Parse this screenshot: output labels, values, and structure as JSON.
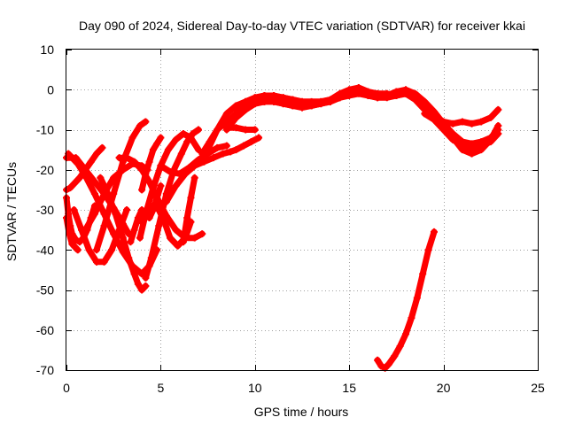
{
  "chart_data": {
    "type": "scatter",
    "title": "Day 090 of 2024, Sidereal Day-to-day VTEC variation (SDTVAR) for receiver kkai",
    "xlabel": "GPS time / hours",
    "ylabel": "SDTVAR / TECUs",
    "xlim": [
      0,
      25
    ],
    "ylim": [
      -70,
      10
    ],
    "xticks": [
      0,
      5,
      10,
      15,
      20,
      25
    ],
    "yticks": [
      10,
      0,
      -10,
      -20,
      -30,
      -40,
      -50,
      -60,
      -70
    ],
    "xtick_labels": [
      "0",
      "5",
      "10",
      "15",
      "20",
      "25"
    ],
    "ytick_labels": [
      "10",
      "0",
      "-10",
      "-20",
      "-30",
      "-40",
      "-50",
      "-60",
      "-70"
    ],
    "grid": true,
    "marker": "+",
    "color": "#ff0000",
    "series": [
      {
        "name": "arc-01",
        "x": [
          0.0,
          0.2,
          0.4,
          0.7,
          1.0,
          1.3,
          1.6,
          1.9
        ],
        "y": [
          -25,
          -24.5,
          -23.5,
          -22,
          -20,
          -18,
          -16,
          -14.5
        ]
      },
      {
        "name": "arc-02",
        "x": [
          0.0,
          0.1,
          0.2,
          0.3,
          0.5,
          0.7,
          0.9,
          1.1,
          1.3,
          1.5
        ],
        "y": [
          -27,
          -31,
          -34,
          -36,
          -37.5,
          -38,
          -37,
          -35,
          -32,
          -29
        ]
      },
      {
        "name": "arc-03",
        "x": [
          0.1,
          0.3,
          0.6,
          1.0,
          1.5,
          2.0,
          2.5,
          3.0,
          3.5,
          4.0,
          4.4,
          4.8
        ],
        "y": [
          -16,
          -17,
          -18.5,
          -21.5,
          -26,
          -31,
          -36,
          -40.5,
          -44,
          -46,
          -44,
          -40
        ]
      },
      {
        "name": "arc-04",
        "x": [
          0.0,
          0.15,
          0.3,
          0.6
        ],
        "y": [
          -32,
          -36,
          -38.5,
          -40
        ]
      },
      {
        "name": "arc-05",
        "x": [
          0.0,
          0.5,
          1.0,
          1.5,
          2.0,
          2.5,
          3.0,
          3.3
        ],
        "y": [
          -17,
          -17,
          -20,
          -23,
          -26,
          -29.5,
          -33.5,
          -36
        ]
      },
      {
        "name": "arc-06",
        "x": [
          0.4,
          0.8,
          1.2,
          1.6,
          2.0,
          2.4,
          2.8,
          3.2
        ],
        "y": [
          -30,
          -35,
          -40,
          -43,
          -43,
          -40,
          -35,
          -30
        ]
      },
      {
        "name": "arc-07",
        "x": [
          1.0,
          1.5,
          2.0,
          2.5,
          3.0,
          3.5,
          4.0,
          4.3
        ],
        "y": [
          -35,
          -31,
          -26,
          -22,
          -20,
          -18.5,
          -19,
          -20
        ]
      },
      {
        "name": "arc-08",
        "x": [
          1.6,
          2.0,
          2.5,
          3.0,
          3.5,
          3.9,
          4.2
        ],
        "y": [
          -40,
          -34,
          -26,
          -18,
          -12,
          -9,
          -8
        ]
      },
      {
        "name": "arc-09",
        "x": [
          1.8,
          2.2,
          2.6,
          3.0,
          3.3,
          3.6,
          3.8,
          4.0,
          4.2
        ],
        "y": [
          -22,
          -26,
          -31,
          -37,
          -42,
          -46,
          -48.5,
          -50,
          -49
        ]
      },
      {
        "name": "arc-10",
        "x": [
          2.8,
          3.2,
          3.6,
          4.0,
          4.4,
          4.8,
          5.3,
          5.8,
          6.3,
          6.8,
          7.2
        ],
        "y": [
          -17,
          -17,
          -18,
          -20,
          -23,
          -27,
          -31.5,
          -35,
          -37,
          -37,
          -36
        ]
      },
      {
        "name": "arc-11",
        "x": [
          3.4,
          3.6,
          3.8,
          4.0
        ],
        "y": [
          -38,
          -35,
          -32,
          -30
        ]
      },
      {
        "name": "arc-12",
        "x": [
          3.9,
          4.2,
          4.6,
          5.0,
          5.4,
          5.8,
          6.2,
          6.6,
          7.0
        ],
        "y": [
          -37,
          -31,
          -24.5,
          -19,
          -15,
          -12.5,
          -11,
          -12,
          -15
        ]
      },
      {
        "name": "arc-13",
        "x": [
          4.0,
          4.2,
          4.4,
          4.6,
          4.8,
          5.0
        ],
        "y": [
          -25,
          -21,
          -18,
          -15,
          -13.5,
          -12
        ]
      },
      {
        "name": "arc-14",
        "x": [
          4.2,
          4.5,
          4.9,
          5.3,
          5.7,
          6.1,
          6.4,
          6.7,
          7.0
        ],
        "y": [
          -47,
          -42,
          -34,
          -26,
          -20,
          -16,
          -13,
          -11,
          -10
        ]
      },
      {
        "name": "arc-15",
        "x": [
          4.4,
          4.6,
          4.8,
          5.0
        ],
        "y": [
          -32,
          -30,
          -27,
          -24
        ]
      },
      {
        "name": "arc-16",
        "x": [
          4.0,
          4.3,
          4.6,
          4.9,
          5.2,
          5.5,
          5.9,
          6.3,
          6.6
        ],
        "y": [
          -33,
          -30,
          -29,
          -30,
          -33,
          -37,
          -39,
          -37,
          -33
        ]
      },
      {
        "name": "arc-17",
        "x": [
          5.0,
          5.5,
          6.0,
          6.5,
          7.0,
          7.5,
          8.0,
          8.5
        ],
        "y": [
          -19,
          -20.5,
          -21,
          -19.5,
          -17.5,
          -16,
          -14.5,
          -14
        ]
      },
      {
        "name": "arc-18",
        "x": [
          5.3,
          5.8,
          6.3,
          6.8,
          7.3,
          7.8,
          8.3,
          8.7,
          9.0,
          9.4,
          9.8,
          10.2
        ],
        "y": [
          -28,
          -24,
          -21,
          -19,
          -18,
          -17,
          -16,
          -15.5,
          -15,
          -14,
          -13,
          -12
        ]
      },
      {
        "name": "arc-19",
        "x": [
          6.2,
          6.4,
          6.6,
          6.8
        ],
        "y": [
          -38,
          -32,
          -27,
          -22
        ]
      },
      {
        "name": "arc-20",
        "x": [
          6.5,
          7.0,
          7.5,
          8.0,
          8.5,
          9.0,
          9.5,
          10.0,
          10.5,
          11.0,
          11.5,
          12.0,
          12.5,
          13.0,
          13.5,
          14.0,
          14.5,
          15.0,
          15.5,
          16.0,
          16.5,
          17.0,
          17.5,
          18.0,
          18.5,
          19.0,
          19.5,
          20.0,
          20.5,
          21.0,
          21.5,
          22.0,
          22.5,
          22.9
        ],
        "y": [
          -20,
          -18,
          -15,
          -10,
          -6,
          -4,
          -3,
          -2,
          -1.5,
          -1.5,
          -2,
          -2.5,
          -3,
          -3,
          -3,
          -2.5,
          -1,
          0,
          0.5,
          -0.5,
          -1,
          -1,
          -1.5,
          -1,
          -2,
          -4,
          -6.5,
          -8,
          -8.5,
          -8,
          -8.5,
          -8,
          -7,
          -5
        ]
      },
      {
        "name": "arc-21",
        "x": [
          7.2,
          7.6,
          8.0,
          8.5,
          9.0,
          9.5,
          10.0,
          10.5,
          11.0,
          11.5,
          12.0,
          12.5,
          13.0,
          13.5,
          14.0,
          14.5,
          15.0,
          15.5,
          16.0,
          16.5,
          17.0,
          17.5,
          18.0,
          18.5,
          19.0,
          19.5,
          20.0,
          20.5,
          21.0,
          21.5,
          22.0,
          22.5,
          22.9
        ],
        "y": [
          -16,
          -13,
          -10,
          -8,
          -6,
          -4.5,
          -3.5,
          -3,
          -3,
          -3.5,
          -4,
          -4.5,
          -4,
          -3.5,
          -3,
          -2,
          -1,
          -0.5,
          -1.5,
          -2,
          -1.5,
          -0.5,
          0,
          -1,
          -3,
          -5.5,
          -8.5,
          -11,
          -13,
          -13.5,
          -13,
          -12,
          -10
        ]
      },
      {
        "name": "arc-22",
        "x": [
          8.5,
          9.0,
          9.5,
          10.0,
          10.5,
          11.0,
          11.5,
          12.0,
          12.5,
          13.0,
          13.5,
          14.0,
          14.5,
          15.0,
          15.5,
          16.0,
          16.5,
          17.0,
          17.5,
          18.0,
          18.5,
          19.0,
          19.5,
          20.0,
          20.5,
          21.0,
          21.5,
          22.0,
          22.5,
          22.9
        ],
        "y": [
          -10,
          -7,
          -5,
          -3.5,
          -3,
          -3,
          -3.5,
          -4,
          -4,
          -4,
          -3.5,
          -3,
          -2,
          -1.5,
          -1,
          -1.5,
          -2,
          -2,
          -1.5,
          -1,
          -2.5,
          -5,
          -7,
          -9.5,
          -12,
          -15,
          -16,
          -15,
          -12.5,
          -9
        ]
      },
      {
        "name": "arc-23",
        "x": [
          8.5,
          9.0,
          9.5,
          10.0
        ],
        "y": [
          -9.5,
          -9.5,
          -10,
          -10
        ]
      },
      {
        "name": "arc-24",
        "x": [
          9.0,
          9.5,
          10.0,
          10.5,
          11.0,
          11.5,
          12.0,
          12.5,
          13.0,
          13.5,
          14.0,
          14.5,
          15.0
        ],
        "y": [
          -5,
          -3,
          -2,
          -1.5,
          -1.5,
          -2,
          -2.5,
          -3,
          -3.5,
          -3,
          -2.5,
          -1.5,
          -0.5
        ]
      },
      {
        "name": "arc-25",
        "x": [
          19.0,
          19.5,
          20.0,
          20.5,
          21.0,
          21.5,
          22.0,
          22.5,
          22.9
        ],
        "y": [
          -6,
          -7.5,
          -10,
          -12.5,
          -14,
          -14.5,
          -14,
          -13,
          -11
        ]
      },
      {
        "name": "arc-26",
        "x": [
          16.5,
          16.7,
          16.9,
          17.1,
          17.4,
          17.7,
          18.0,
          18.3,
          18.6,
          18.9,
          19.2,
          19.5
        ],
        "y": [
          -67.5,
          -69,
          -69.5,
          -68.5,
          -66.5,
          -64,
          -61,
          -57,
          -52,
          -46,
          -40,
          -35.5
        ]
      }
    ]
  }
}
